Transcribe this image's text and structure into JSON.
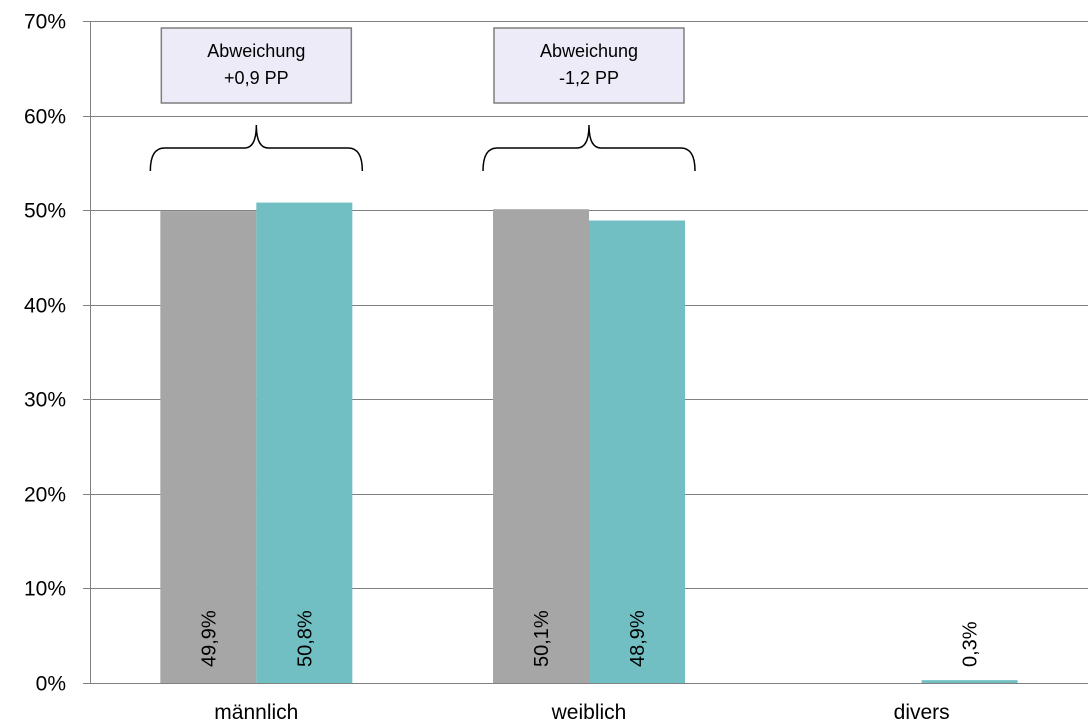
{
  "chart_data": {
    "type": "bar",
    "categories": [
      "männlich",
      "weiblich",
      "divers"
    ],
    "series": [
      {
        "values": [
          49.9,
          50.1,
          null
        ],
        "labels": [
          "49,9%",
          "50,1%",
          ""
        ],
        "color": "#A6A6A6"
      },
      {
        "values": [
          50.8,
          48.9,
          0.3
        ],
        "labels": [
          "50,8%",
          "48,9%",
          "0,3%"
        ],
        "color": "#72BFC3"
      }
    ],
    "ylim": [
      0,
      70
    ],
    "yticks": [
      0,
      10,
      20,
      30,
      40,
      50,
      60,
      70
    ],
    "ytick_labels": [
      "0%",
      "10%",
      "20%",
      "30%",
      "40%",
      "50%",
      "60%",
      "70%"
    ],
    "grid": true,
    "annotations": [
      {
        "category": "männlich",
        "line1": "Abweichung",
        "line2": "+0,9 PP"
      },
      {
        "category": "weiblich",
        "line1": "Abweichung",
        "line2": "-1,2 PP"
      }
    ],
    "colors": {
      "grid": "#808080",
      "axis": "#808080",
      "annotation_fill": "#ECEBF7",
      "annotation_border": "#7F7F7F"
    }
  }
}
